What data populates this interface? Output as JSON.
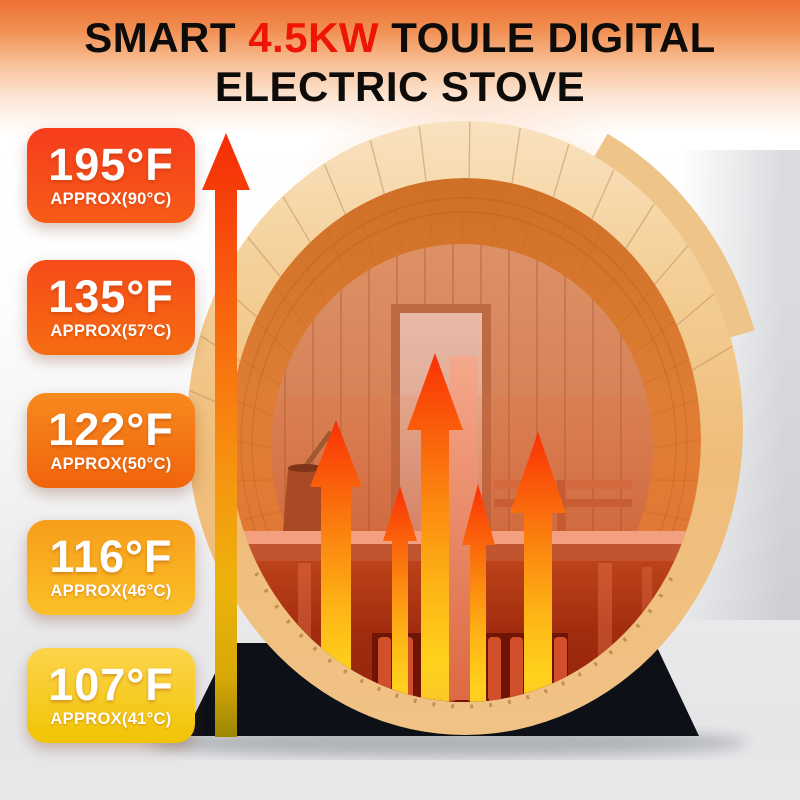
{
  "title": {
    "line1": [
      {
        "text": "SMART ",
        "color": "#0e0b0b"
      },
      {
        "text": "4.5KW",
        "color": "#ee1506"
      },
      {
        "text": " TOULE DIGITAL",
        "color": "#0e0b0b"
      }
    ],
    "line2": "ELECTRIC STOVE"
  },
  "temperature_labels": [
    {
      "fahrenheit": "195°F",
      "celsius": "APPROX(90°C)",
      "gradient_top": "#f63d1d",
      "gradient_bottom": "#f75b17"
    },
    {
      "fahrenheit": "135°F",
      "celsius": "APPROX(57°C)",
      "gradient_top": "#f64b18",
      "gradient_bottom": "#f66c12"
    },
    {
      "fahrenheit": "122°F",
      "celsius": "APPROX(50°C)",
      "gradient_top": "#f78a1e",
      "gradient_bottom": "#f0640c"
    },
    {
      "fahrenheit": "116°F",
      "celsius": "APPROX(46°C)",
      "gradient_top": "#f79d1c",
      "gradient_bottom": "#fac026"
    },
    {
      "fahrenheit": "107°F",
      "celsius": "APPROX(41°C)",
      "gradient_top": "#fcd44d",
      "gradient_bottom": "#f1c402"
    }
  ],
  "diagram": {
    "subject": "Barrel sauna cross-section showing heat rising from the electric stove",
    "heat_arrow_count": 5,
    "colors": {
      "flame_tip": "#f93008",
      "flame_base": "#ffd11d",
      "wood_rim": "#efbd79",
      "interior_wall": "#df7f35",
      "hot_zone": "#a12c0e",
      "stand": "#0d1117",
      "title_highlight": "#ee1506"
    }
  }
}
